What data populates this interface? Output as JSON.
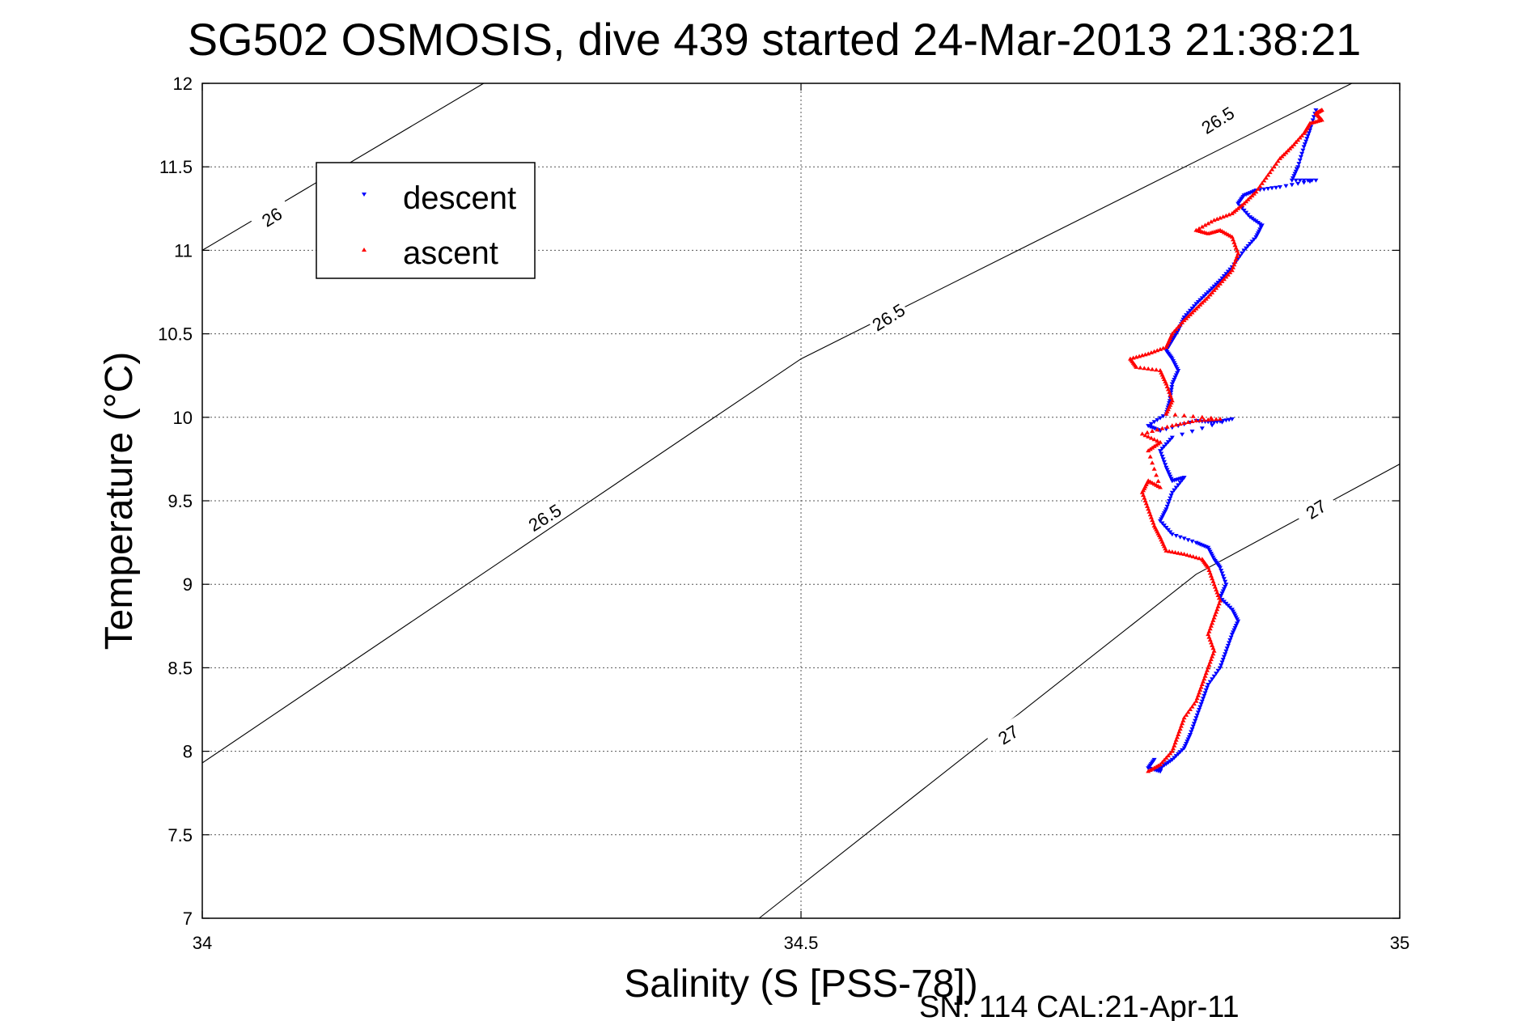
{
  "chart_data": {
    "type": "scatter",
    "title": "SG502 OSMOSIS, dive 439 started 24-Mar-2013 21:38:21",
    "xlabel": "Salinity (S [PSS-78])",
    "ylabel": "Temperature (°C)",
    "footnote": "SN: 114  CAL:21-Apr-11",
    "xlim": [
      34,
      35
    ],
    "ylim": [
      7,
      12
    ],
    "xticks": [
      "34",
      "34.5",
      "35"
    ],
    "yticks": [
      "7",
      "7.5",
      "8",
      "8.5",
      "9",
      "9.5",
      "10",
      "10.5",
      "11",
      "11.5",
      "12"
    ],
    "grid": true,
    "legend": {
      "placement": "top-left",
      "entries": [
        {
          "label": "descent",
          "color": "#0000ff",
          "marker": "triangle-down"
        },
        {
          "label": "ascent",
          "color": "#ff0000",
          "marker": "triangle-up"
        }
      ]
    },
    "contours": [
      {
        "label": "26",
        "points": [
          [
            34.0,
            11.0
          ],
          [
            34.235,
            12.0
          ]
        ]
      },
      {
        "label": "26.5",
        "points": [
          [
            34.0,
            7.93
          ],
          [
            34.5,
            10.35
          ],
          [
            34.96,
            12.0
          ]
        ]
      },
      {
        "label": "27",
        "points": [
          [
            34.465,
            7.0
          ],
          [
            34.83,
            9.06
          ],
          [
            35.0,
            9.72
          ]
        ]
      }
    ],
    "contour_labels": [
      {
        "text": "26",
        "x": 34.058,
        "y": 11.2
      },
      {
        "text": "26.5",
        "x": 34.573,
        "y": 10.6
      },
      {
        "text": "26.5",
        "x": 34.286,
        "y": 9.4
      },
      {
        "text": "26.5",
        "x": 34.848,
        "y": 11.78
      },
      {
        "text": "27",
        "x": 34.673,
        "y": 8.1
      },
      {
        "text": "27",
        "x": 34.93,
        "y": 9.45
      }
    ],
    "series": [
      {
        "name": "descent",
        "color": "#0000ff",
        "marker": "triangle-down",
        "points": [
          [
            34.93,
            11.84
          ],
          [
            34.925,
            11.72
          ],
          [
            34.92,
            11.62
          ],
          [
            34.915,
            11.5
          ],
          [
            34.91,
            11.42
          ],
          [
            34.93,
            11.42
          ],
          [
            34.9,
            11.38
          ],
          [
            34.88,
            11.36
          ],
          [
            34.87,
            11.33
          ],
          [
            34.865,
            11.28
          ],
          [
            34.875,
            11.2
          ],
          [
            34.885,
            11.15
          ],
          [
            34.88,
            11.08
          ],
          [
            34.87,
            11.0
          ],
          [
            34.86,
            10.9
          ],
          [
            34.85,
            10.82
          ],
          [
            34.84,
            10.75
          ],
          [
            34.83,
            10.68
          ],
          [
            34.82,
            10.6
          ],
          [
            34.815,
            10.52
          ],
          [
            34.81,
            10.46
          ],
          [
            34.805,
            10.4
          ],
          [
            34.81,
            10.35
          ],
          [
            34.815,
            10.28
          ],
          [
            34.81,
            10.2
          ],
          [
            34.808,
            10.1
          ],
          [
            34.805,
            10.02
          ],
          [
            34.79,
            9.95
          ],
          [
            34.8,
            9.92
          ],
          [
            34.83,
            9.98
          ],
          [
            34.845,
            9.97
          ],
          [
            34.86,
            9.99
          ],
          [
            34.81,
            9.88
          ],
          [
            34.8,
            9.8
          ],
          [
            34.805,
            9.7
          ],
          [
            34.81,
            9.62
          ],
          [
            34.82,
            9.64
          ],
          [
            34.81,
            9.55
          ],
          [
            34.805,
            9.45
          ],
          [
            34.8,
            9.38
          ],
          [
            34.81,
            9.3
          ],
          [
            34.83,
            9.25
          ],
          [
            34.84,
            9.22
          ],
          [
            34.845,
            9.15
          ],
          [
            34.85,
            9.1
          ],
          [
            34.855,
            9.0
          ],
          [
            34.85,
            8.92
          ],
          [
            34.86,
            8.85
          ],
          [
            34.865,
            8.78
          ],
          [
            34.86,
            8.7
          ],
          [
            34.855,
            8.6
          ],
          [
            34.85,
            8.5
          ],
          [
            34.84,
            8.4
          ],
          [
            34.835,
            8.3
          ],
          [
            34.83,
            8.2
          ],
          [
            34.825,
            8.1
          ],
          [
            34.82,
            8.02
          ],
          [
            34.81,
            7.95
          ],
          [
            34.8,
            7.9
          ],
          [
            34.8,
            7.88
          ],
          [
            34.79,
            7.9
          ],
          [
            34.795,
            7.95
          ]
        ]
      },
      {
        "name": "ascent",
        "color": "#ff0000",
        "marker": "triangle-up",
        "points": [
          [
            34.79,
            7.88
          ],
          [
            34.8,
            7.92
          ],
          [
            34.81,
            8.0
          ],
          [
            34.815,
            8.1
          ],
          [
            34.82,
            8.2
          ],
          [
            34.83,
            8.3
          ],
          [
            34.835,
            8.4
          ],
          [
            34.84,
            8.5
          ],
          [
            34.845,
            8.6
          ],
          [
            34.84,
            8.7
          ],
          [
            34.845,
            8.8
          ],
          [
            34.85,
            8.9
          ],
          [
            34.845,
            9.0
          ],
          [
            34.84,
            9.1
          ],
          [
            34.835,
            9.15
          ],
          [
            34.82,
            9.18
          ],
          [
            34.805,
            9.2
          ],
          [
            34.8,
            9.28
          ],
          [
            34.795,
            9.35
          ],
          [
            34.79,
            9.45
          ],
          [
            34.785,
            9.55
          ],
          [
            34.79,
            9.62
          ],
          [
            34.8,
            9.58
          ],
          [
            34.79,
            9.8
          ],
          [
            34.8,
            9.85
          ],
          [
            34.785,
            9.9
          ],
          [
            34.81,
            9.95
          ],
          [
            34.83,
            9.98
          ],
          [
            34.85,
            9.99
          ],
          [
            34.805,
            10.02
          ],
          [
            34.81,
            10.1
          ],
          [
            34.805,
            10.2
          ],
          [
            34.8,
            10.28
          ],
          [
            34.78,
            10.3
          ],
          [
            34.775,
            10.35
          ],
          [
            34.79,
            10.38
          ],
          [
            34.805,
            10.42
          ],
          [
            34.81,
            10.5
          ],
          [
            34.82,
            10.58
          ],
          [
            34.83,
            10.65
          ],
          [
            34.84,
            10.72
          ],
          [
            34.85,
            10.8
          ],
          [
            34.86,
            10.88
          ],
          [
            34.865,
            10.98
          ],
          [
            34.86,
            11.08
          ],
          [
            34.85,
            11.12
          ],
          [
            34.84,
            11.1
          ],
          [
            34.83,
            11.12
          ],
          [
            34.845,
            11.18
          ],
          [
            34.86,
            11.22
          ],
          [
            34.87,
            11.28
          ],
          [
            34.88,
            11.35
          ],
          [
            34.89,
            11.45
          ],
          [
            34.9,
            11.55
          ],
          [
            34.91,
            11.62
          ],
          [
            34.92,
            11.7
          ],
          [
            34.925,
            11.76
          ],
          [
            34.935,
            11.78
          ],
          [
            34.93,
            11.82
          ],
          [
            34.935,
            11.84
          ]
        ]
      }
    ]
  }
}
